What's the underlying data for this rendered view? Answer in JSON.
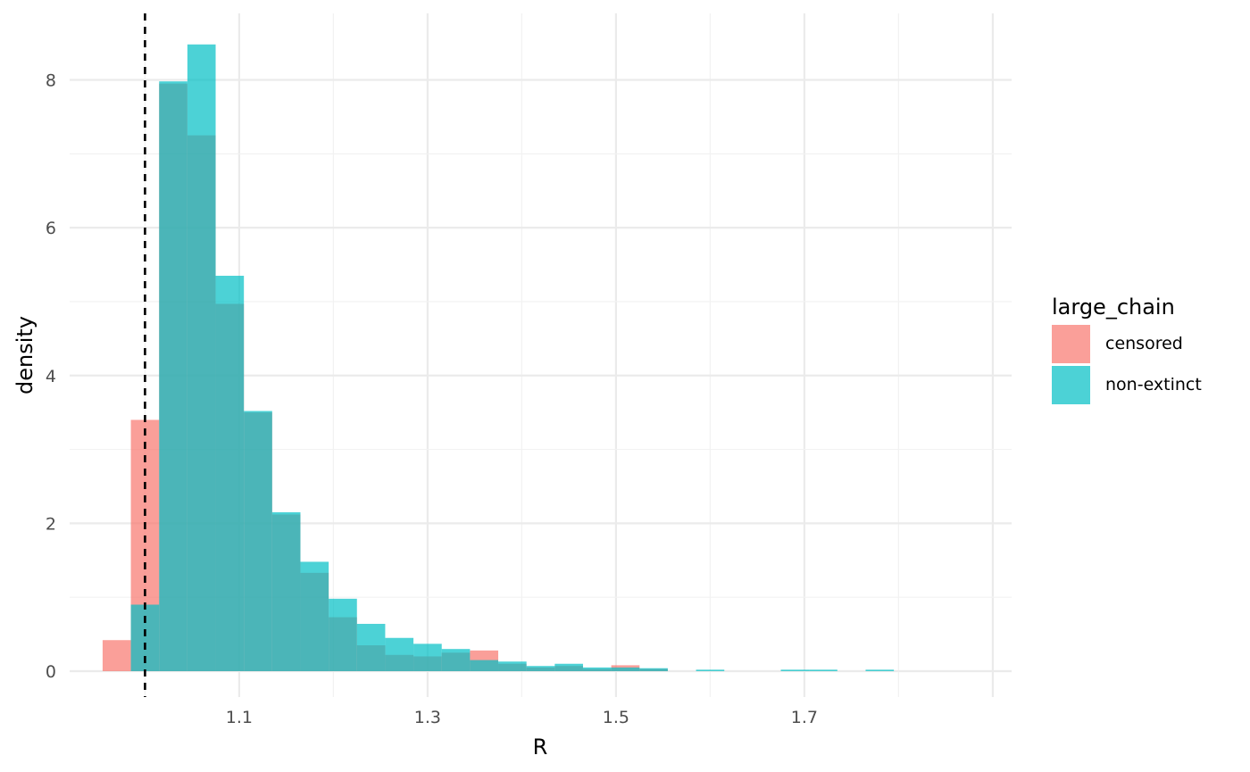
{
  "chart_data": {
    "type": "bar",
    "subtype": "overlaid-histogram",
    "title": "",
    "xlabel": "R",
    "ylabel": "density",
    "xlim": [
      0.92,
      1.92
    ],
    "ylim": [
      -0.35,
      8.9
    ],
    "x_ticks": [
      1.1,
      1.3,
      1.5,
      1.7
    ],
    "x_tick_labels": [
      "1.1",
      "1.3",
      "1.5",
      "1.7"
    ],
    "y_ticks": [
      0,
      2,
      4,
      6,
      8
    ],
    "y_tick_labels": [
      "0",
      "2",
      "4",
      "6",
      "8"
    ],
    "bin_width": 0.03,
    "reference_line": {
      "x": 1.0,
      "style": "dashed",
      "color": "#000000"
    },
    "grid": true,
    "legend_position": "right",
    "legend": {
      "title": "large_chain",
      "entries": [
        {
          "label": "censored",
          "color": "#F8766D"
        },
        {
          "label": "non-extinct",
          "color": "#00BFC4"
        }
      ]
    },
    "series": [
      {
        "name": "censored",
        "color": "#F8766D",
        "bin_left": [
          0.955,
          0.985,
          1.015,
          1.045,
          1.075,
          1.105,
          1.135,
          1.165,
          1.195,
          1.225,
          1.255,
          1.285,
          1.315,
          1.345,
          1.375,
          1.405,
          1.435,
          1.465,
          1.495,
          1.525
        ],
        "density": [
          0.42,
          3.4,
          7.95,
          7.25,
          4.97,
          3.5,
          2.12,
          1.33,
          0.73,
          0.35,
          0.22,
          0.2,
          0.25,
          0.28,
          0.1,
          0.05,
          0.07,
          0.03,
          0.08,
          0.03
        ]
      },
      {
        "name": "non-extinct",
        "color": "#00BFC4",
        "bin_left": [
          0.985,
          1.015,
          1.045,
          1.075,
          1.105,
          1.135,
          1.165,
          1.195,
          1.225,
          1.255,
          1.285,
          1.315,
          1.345,
          1.375,
          1.405,
          1.435,
          1.465,
          1.495,
          1.525,
          1.585,
          1.675,
          1.705,
          1.765
        ],
        "density": [
          0.9,
          7.98,
          8.48,
          5.35,
          3.52,
          2.15,
          1.48,
          0.98,
          0.64,
          0.45,
          0.37,
          0.3,
          0.15,
          0.13,
          0.07,
          0.1,
          0.05,
          0.05,
          0.04,
          0.02,
          0.02,
          0.02,
          0.02
        ]
      }
    ]
  }
}
